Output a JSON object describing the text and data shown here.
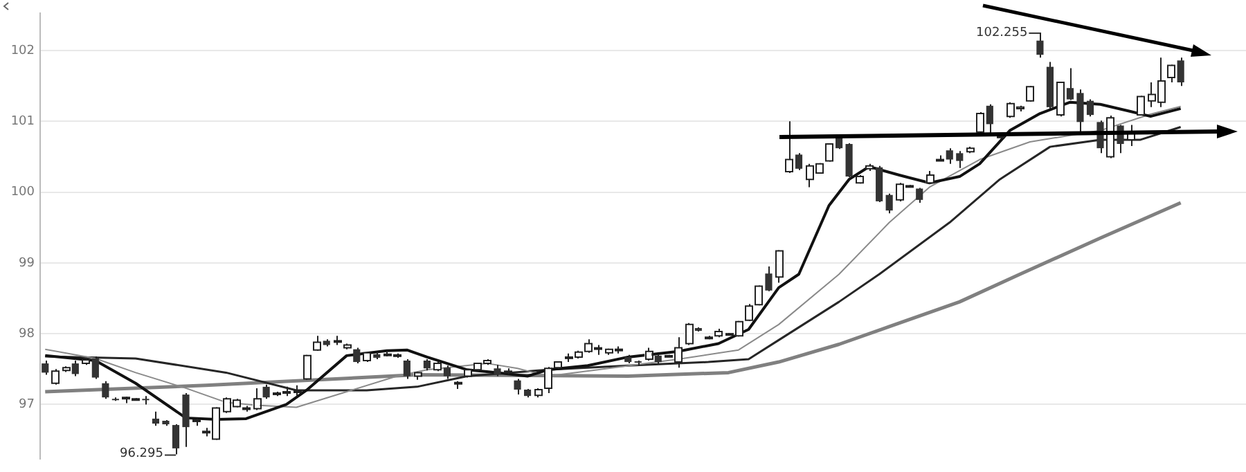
{
  "chart_data": {
    "type": "candlestick",
    "grid": "y",
    "legend": false,
    "tick_labels": "y",
    "marker": "none",
    "ylim": [
      96.23,
      102.53
    ],
    "yticks": [
      97,
      98,
      99,
      100,
      101,
      102
    ],
    "categories": [
      null,
      null,
      null,
      null,
      null,
      null,
      null,
      null,
      null,
      null,
      null,
      null,
      null,
      null,
      null,
      null,
      null,
      null,
      null,
      null,
      null,
      null,
      null,
      null,
      null,
      null,
      null,
      null,
      null,
      null,
      null,
      null,
      null,
      null,
      null,
      null,
      null,
      null,
      null,
      null,
      null,
      null,
      null,
      null,
      null,
      null,
      null,
      null,
      null,
      null,
      null,
      null,
      null,
      null,
      null,
      null,
      null,
      null,
      null,
      null,
      null,
      null,
      null,
      null,
      null,
      null,
      null,
      null,
      null,
      null,
      null,
      null,
      null,
      null,
      null,
      null,
      null,
      null,
      null,
      null,
      null,
      null,
      null,
      null,
      null,
      null,
      null,
      null,
      null,
      null,
      null,
      null,
      null,
      null,
      null,
      null,
      null,
      null,
      null,
      null,
      null,
      null,
      null,
      null,
      null,
      null,
      null,
      null,
      null,
      null,
      null,
      null,
      null,
      null,
      null,
      null,
      null,
      null,
      null,
      null
    ],
    "ohlc": [
      [
        97.58,
        97.62,
        97.42,
        97.45
      ],
      [
        97.3,
        97.5,
        97.28,
        97.47
      ],
      [
        97.48,
        97.54,
        97.46,
        97.52
      ],
      [
        97.58,
        97.62,
        97.4,
        97.43
      ],
      [
        97.58,
        97.66,
        97.56,
        97.63
      ],
      [
        97.65,
        97.68,
        97.36,
        97.38
      ],
      [
        97.3,
        97.33,
        97.08,
        97.1
      ],
      [
        97.08,
        97.1,
        97.05,
        97.07
      ],
      [
        97.1,
        97.11,
        97.02,
        97.1
      ],
      [
        97.08,
        97.09,
        97.07,
        97.08
      ],
      [
        97.08,
        97.12,
        97.0,
        97.06
      ],
      [
        96.8,
        96.9,
        96.7,
        96.73
      ],
      [
        96.77,
        96.78,
        96.7,
        96.72
      ],
      [
        96.71,
        96.72,
        96.295,
        96.38
      ],
      [
        97.14,
        97.16,
        96.4,
        96.68
      ],
      [
        96.77,
        96.8,
        96.7,
        96.78
      ],
      [
        96.61,
        96.67,
        96.55,
        96.62
      ],
      [
        96.51,
        96.96,
        96.5,
        96.95
      ],
      [
        96.9,
        97.1,
        96.88,
        97.08
      ],
      [
        96.97,
        97.08,
        96.96,
        97.06
      ],
      [
        96.93,
        96.98,
        96.9,
        96.95
      ],
      [
        96.94,
        97.23,
        96.92,
        97.08
      ],
      [
        97.25,
        97.28,
        97.08,
        97.1
      ],
      [
        97.14,
        97.18,
        97.12,
        97.16
      ],
      [
        97.17,
        97.25,
        97.12,
        97.18
      ],
      [
        97.18,
        97.27,
        97.12,
        97.19
      ],
      [
        97.36,
        97.7,
        97.35,
        97.69
      ],
      [
        97.77,
        97.97,
        97.76,
        97.88
      ],
      [
        97.9,
        97.92,
        97.82,
        97.84
      ],
      [
        97.89,
        97.97,
        97.84,
        97.9
      ],
      [
        97.8,
        97.86,
        97.78,
        97.84
      ],
      [
        97.78,
        97.8,
        97.58,
        97.6
      ],
      [
        97.62,
        97.74,
        97.6,
        97.73
      ],
      [
        97.71,
        97.74,
        97.64,
        97.66
      ],
      [
        97.7,
        97.76,
        97.68,
        97.71
      ],
      [
        97.7,
        97.72,
        97.66,
        97.7
      ],
      [
        97.62,
        97.64,
        97.36,
        97.4
      ],
      [
        97.4,
        97.46,
        97.35,
        97.45
      ],
      [
        97.62,
        97.64,
        97.48,
        97.51
      ],
      [
        97.49,
        97.6,
        97.47,
        97.58
      ],
      [
        97.52,
        97.55,
        97.36,
        97.4
      ],
      [
        97.3,
        97.33,
        97.22,
        97.31
      ],
      [
        97.4,
        97.5,
        97.38,
        97.49
      ],
      [
        97.49,
        97.59,
        97.47,
        97.58
      ],
      [
        97.58,
        97.64,
        97.56,
        97.62
      ],
      [
        97.51,
        97.56,
        97.4,
        97.42
      ],
      [
        97.47,
        97.51,
        97.43,
        97.47
      ],
      [
        97.34,
        97.36,
        97.14,
        97.21
      ],
      [
        97.21,
        97.22,
        97.1,
        97.12
      ],
      [
        97.13,
        97.23,
        97.1,
        97.21
      ],
      [
        97.23,
        97.53,
        97.16,
        97.51
      ],
      [
        97.52,
        97.61,
        97.5,
        97.6
      ],
      [
        97.66,
        97.72,
        97.6,
        97.67
      ],
      [
        97.67,
        97.76,
        97.65,
        97.74
      ],
      [
        97.75,
        97.92,
        97.73,
        97.86
      ],
      [
        97.8,
        97.84,
        97.7,
        97.8
      ],
      [
        97.73,
        97.79,
        97.7,
        97.78
      ],
      [
        97.78,
        97.82,
        97.72,
        97.78
      ],
      [
        97.67,
        97.7,
        97.58,
        97.6
      ],
      [
        97.61,
        97.62,
        97.55,
        97.6
      ],
      [
        97.64,
        97.8,
        97.62,
        97.75
      ],
      [
        97.69,
        97.71,
        97.58,
        97.6
      ],
      [
        97.69,
        97.7,
        97.68,
        97.69
      ],
      [
        97.6,
        97.95,
        97.52,
        97.8
      ],
      [
        97.86,
        98.15,
        97.84,
        98.13
      ],
      [
        98.08,
        98.09,
        98.03,
        98.04
      ],
      [
        97.95,
        97.97,
        97.92,
        97.95
      ],
      [
        97.97,
        98.07,
        97.95,
        98.03
      ],
      [
        98.0,
        98.01,
        97.99,
        98.0
      ],
      [
        97.97,
        98.18,
        97.96,
        98.17
      ],
      [
        98.19,
        98.42,
        98.18,
        98.39
      ],
      [
        98.41,
        98.68,
        98.4,
        98.67
      ],
      [
        98.85,
        98.95,
        98.6,
        98.61
      ],
      [
        98.8,
        99.18,
        98.72,
        99.17
      ],
      [
        100.29,
        101.0,
        100.27,
        100.46
      ],
      [
        100.53,
        100.55,
        100.31,
        100.33
      ],
      [
        100.18,
        100.4,
        100.07,
        100.37
      ],
      [
        100.27,
        100.41,
        100.26,
        100.4
      ],
      [
        100.44,
        100.69,
        100.43,
        100.68
      ],
      [
        100.77,
        100.8,
        100.61,
        100.62
      ],
      [
        100.68,
        100.69,
        100.21,
        100.22
      ],
      [
        100.13,
        100.24,
        100.12,
        100.22
      ],
      [
        100.33,
        100.4,
        100.3,
        100.37
      ],
      [
        100.35,
        100.37,
        99.86,
        99.87
      ],
      [
        99.96,
        99.98,
        99.7,
        99.74
      ],
      [
        99.89,
        100.13,
        99.87,
        100.11
      ],
      [
        100.09,
        100.1,
        100.08,
        100.09
      ],
      [
        100.05,
        100.06,
        99.85,
        99.89
      ],
      [
        100.13,
        100.3,
        100.12,
        100.24
      ],
      [
        100.46,
        100.52,
        100.44,
        100.46
      ],
      [
        100.59,
        100.62,
        100.4,
        100.46
      ],
      [
        100.55,
        100.58,
        100.34,
        100.44
      ],
      [
        100.57,
        100.64,
        100.55,
        100.62
      ],
      [
        100.85,
        101.13,
        100.84,
        101.11
      ],
      [
        101.22,
        101.24,
        100.8,
        100.96
      ],
      [
        100.79,
        100.81,
        100.78,
        100.79
      ],
      [
        101.07,
        101.27,
        101.05,
        101.25
      ],
      [
        101.18,
        101.22,
        101.14,
        101.2
      ],
      [
        101.29,
        101.5,
        101.28,
        101.49
      ],
      [
        102.14,
        102.255,
        101.9,
        101.94
      ],
      [
        101.77,
        101.84,
        101.18,
        101.2
      ],
      [
        101.09,
        101.56,
        101.07,
        101.55
      ],
      [
        101.47,
        101.75,
        101.3,
        101.31
      ],
      [
        101.4,
        101.45,
        100.82,
        100.99
      ],
      [
        101.29,
        101.31,
        101.07,
        101.09
      ],
      [
        100.99,
        101.01,
        100.55,
        100.62
      ],
      [
        100.5,
        101.08,
        100.48,
        101.05
      ],
      [
        100.94,
        100.95,
        100.55,
        100.68
      ],
      [
        100.74,
        100.95,
        100.65,
        100.83
      ],
      [
        101.09,
        101.36,
        101.08,
        101.35
      ],
      [
        101.29,
        101.55,
        101.2,
        101.38
      ],
      [
        101.27,
        101.9,
        101.2,
        101.57
      ],
      [
        101.62,
        101.8,
        101.55,
        101.79
      ],
      [
        101.86,
        101.9,
        101.5,
        101.55
      ],
      null,
      null,
      null,
      null,
      null,
      null
    ],
    "series": [
      {
        "type": "line",
        "color": "#111111",
        "values": [
          97.69,
          null,
          null,
          null,
          null,
          97.62,
          null,
          null,
          null,
          97.3,
          null,
          null,
          null,
          null,
          96.81,
          null,
          null,
          96.79,
          null,
          null,
          96.8,
          null,
          null,
          null,
          97.0,
          null,
          97.2,
          null,
          null,
          null,
          97.69,
          null,
          null,
          null,
          97.76,
          null,
          97.77,
          null,
          97.67,
          null,
          null,
          null,
          97.49,
          null,
          null,
          97.45,
          null,
          null,
          97.4,
          null,
          97.49,
          null,
          null,
          null,
          97.55,
          null,
          null,
          null,
          97.67,
          null,
          null,
          null,
          null,
          97.75,
          null,
          null,
          null,
          97.86,
          null,
          null,
          98.06,
          null,
          null,
          98.65,
          null,
          98.84,
          null,
          null,
          99.81,
          null,
          100.18,
          null,
          100.36,
          null,
          null,
          100.24,
          null,
          null,
          100.13,
          null,
          null,
          100.22,
          null,
          100.4,
          null,
          null,
          100.87,
          null,
          null,
          101.11,
          null,
          null,
          101.27,
          null,
          null,
          101.24,
          null,
          null,
          101.14,
          null,
          101.07,
          null,
          null,
          101.18,
          null,
          null,
          null,
          null,
          null,
          null
        ]
      },
      {
        "type": "line",
        "color": "#8a8a8a",
        "values": [
          97.78,
          null,
          null,
          null,
          null,
          97.65,
          null,
          null,
          null,
          97.45,
          null,
          null,
          null,
          null,
          97.23,
          null,
          null,
          null,
          97.03,
          null,
          null,
          96.99,
          null,
          null,
          null,
          96.96,
          null,
          null,
          null,
          null,
          97.18,
          null,
          null,
          null,
          null,
          97.4,
          null,
          null,
          97.49,
          null,
          null,
          null,
          null,
          null,
          97.58,
          null,
          null,
          97.51,
          null,
          null,
          97.4,
          null,
          null,
          null,
          null,
          97.49,
          null,
          null,
          null,
          null,
          null,
          null,
          null,
          97.64,
          null,
          null,
          null,
          null,
          null,
          97.77,
          null,
          null,
          null,
          98.13,
          null,
          null,
          null,
          null,
          null,
          98.84,
          null,
          null,
          null,
          null,
          99.57,
          null,
          null,
          null,
          100.07,
          null,
          null,
          null,
          null,
          100.46,
          null,
          null,
          null,
          null,
          100.71,
          null,
          null,
          null,
          null,
          null,
          null,
          100.87,
          null,
          null,
          null,
          null,
          101.1,
          null,
          null,
          101.21,
          null,
          null,
          null,
          null,
          null,
          null
        ]
      },
      {
        "type": "line",
        "color": "#262626",
        "values": [
          97.68,
          null,
          null,
          null,
          null,
          null,
          null,
          null,
          null,
          97.65,
          null,
          null,
          null,
          null,
          null,
          null,
          null,
          null,
          97.45,
          null,
          null,
          null,
          null,
          null,
          null,
          97.2,
          null,
          null,
          null,
          null,
          null,
          null,
          97.2,
          null,
          null,
          null,
          null,
          97.25,
          null,
          null,
          null,
          null,
          97.4,
          null,
          null,
          null,
          null,
          null,
          null,
          null,
          97.49,
          null,
          null,
          null,
          null,
          null,
          null,
          null,
          97.55,
          null,
          null,
          null,
          null,
          null,
          null,
          null,
          97.6,
          null,
          null,
          null,
          97.64,
          null,
          null,
          97.91,
          null,
          null,
          null,
          null,
          null,
          98.45,
          null,
          null,
          null,
          98.84,
          null,
          null,
          null,
          null,
          null,
          null,
          99.57,
          null,
          null,
          null,
          null,
          100.18,
          null,
          null,
          null,
          null,
          100.64,
          null,
          null,
          null,
          null,
          100.74,
          null,
          null,
          null,
          100.74,
          null,
          null,
          null,
          100.92,
          null,
          null,
          null,
          null,
          null,
          null
        ]
      },
      {
        "type": "line",
        "color": "#808080",
        "values": [
          97.18,
          null,
          null,
          null,
          null,
          null,
          null,
          null,
          null,
          null,
          null,
          null,
          null,
          null,
          null,
          null,
          97.27,
          null,
          null,
          null,
          null,
          null,
          null,
          null,
          null,
          null,
          null,
          null,
          null,
          null,
          null,
          null,
          null,
          null,
          null,
          null,
          null,
          97.42,
          null,
          null,
          null,
          null,
          null,
          null,
          null,
          null,
          null,
          null,
          null,
          null,
          null,
          null,
          null,
          null,
          null,
          null,
          null,
          null,
          97.4,
          null,
          null,
          null,
          null,
          null,
          null,
          null,
          null,
          null,
          97.45,
          null,
          null,
          null,
          null,
          97.6,
          null,
          null,
          null,
          null,
          null,
          97.85,
          null,
          null,
          null,
          null,
          98.1,
          null,
          null,
          null,
          null,
          null,
          null,
          98.45,
          null,
          null,
          null,
          null,
          null,
          98.84,
          null,
          null,
          null,
          null,
          null,
          null,
          null,
          99.35,
          null,
          null,
          null,
          null,
          null,
          null,
          null,
          99.85,
          null,
          null,
          null,
          null,
          null,
          null
        ]
      }
    ],
    "annotations": [
      "96.295",
      "102.255"
    ]
  }
}
